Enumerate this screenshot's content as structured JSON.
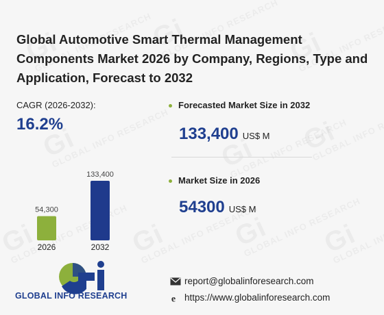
{
  "title": "Global Automotive Smart Thermal Management Components Market 2026 by Company, Regions, Type and Application, Forecast to 2032",
  "cagr": {
    "label": "CAGR (2026-2032):",
    "value": "16.2%"
  },
  "metrics": [
    {
      "label": "Forecasted Market Size in 2032",
      "value": "133,400",
      "unit": "US$ M"
    },
    {
      "label": "Market Size in 2026",
      "value": "54300",
      "unit": "US$ M"
    }
  ],
  "chart_data": {
    "type": "bar",
    "categories": [
      "2026",
      "2032"
    ],
    "values": [
      54300,
      133400
    ],
    "value_labels": [
      "54,300",
      "133,400"
    ],
    "colors": [
      "#8db03c",
      "#1f3a8c"
    ],
    "grid": false
  },
  "logo": {
    "brand": "GLOBAL INFO RESEARCH",
    "colors": {
      "globe": "#8db03c",
      "text": "#1f3f8f"
    }
  },
  "watermark": {
    "mark": "Gi",
    "text": "GLOBAL INFO RESEARCH"
  },
  "contact": {
    "email": "report@globalinforesearch.com",
    "website": "https://www.globalinforesearch.com",
    "email_icon": "envelope-icon",
    "web_icon": "internet-explorer-icon"
  }
}
